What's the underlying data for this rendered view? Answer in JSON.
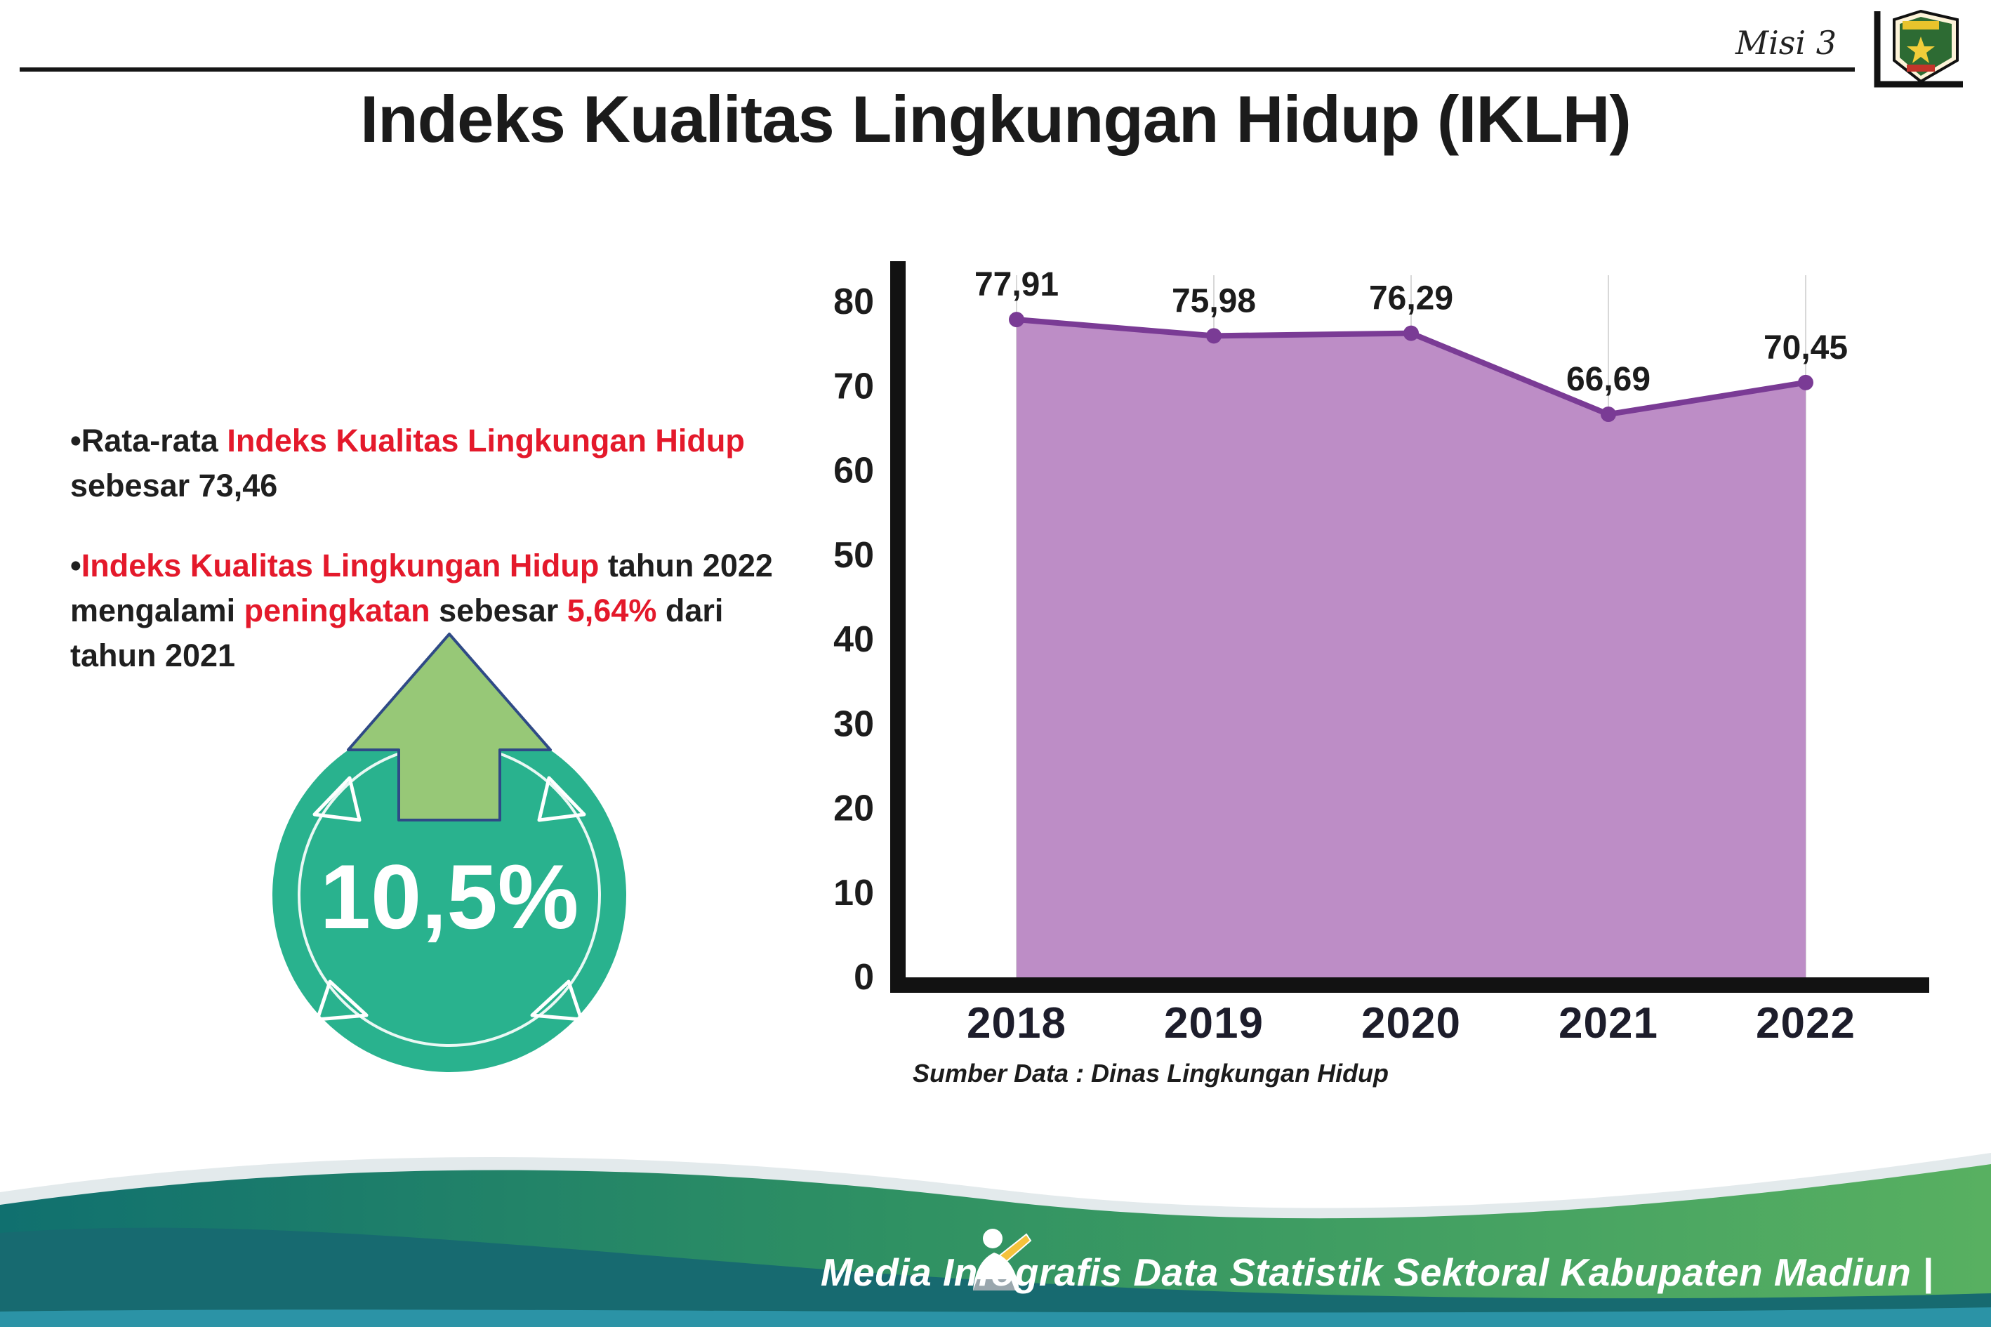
{
  "header": {
    "misi_label": "Misi 3",
    "title": "Indeks Kualitas Lingkungan Hidup (IKLH)"
  },
  "bullets": {
    "b1": {
      "s1": "•Rata-rata ",
      "s2": "Indeks Kualitas Lingkungan Hidup",
      "s3": " sebesar 73,46"
    },
    "b2": {
      "s1": "•",
      "s2": "Indeks Kualitas Lingkungan Hidup",
      "s3": " tahun 2022 mengalami ",
      "s4": "peningkatan",
      "s5": " sebesar ",
      "s6": "5,64%",
      "s7": " dari tahun 2021"
    }
  },
  "badge": {
    "value": "10,5%"
  },
  "chart_data": {
    "type": "area",
    "title": "Indeks Kualitas Lingkungan Hidup (IKLH)",
    "categories": [
      "2018",
      "2019",
      "2020",
      "2021",
      "2022"
    ],
    "values": [
      77.91,
      75.98,
      76.29,
      66.69,
      70.45
    ],
    "labels": [
      "77,91",
      "75,98",
      "76,29",
      "66,69",
      "70,45"
    ],
    "ylim": [
      0,
      80
    ],
    "yticks": [
      0,
      10,
      20,
      30,
      40,
      50,
      60,
      70,
      80
    ],
    "grid": "vertical",
    "legend": "none",
    "line_color": "#7a3b95",
    "fill_color": "#bd8dc6",
    "source": "Sumber Data : Dinas Lingkungan Hidup"
  },
  "footer": {
    "credit": "Media Infografis Data Statistik Sektoral Kabupaten Madiun |"
  },
  "colors": {
    "accent_red": "#e4192b",
    "badge_green": "#29b28e",
    "arrow_green": "#97c877",
    "footer_teal": "#13706e",
    "footer_green": "#58b061",
    "footer_dark_teal": "#176a70",
    "footer_strip_blue": "#2b93a6"
  }
}
